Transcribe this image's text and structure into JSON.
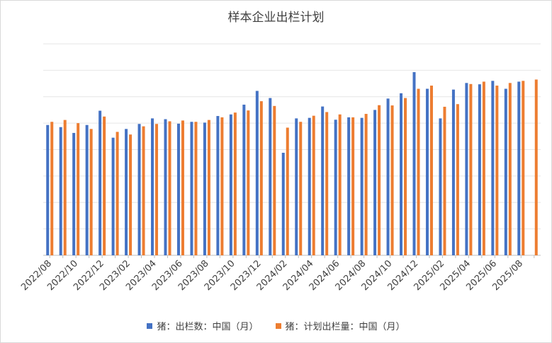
{
  "chart_data": {
    "type": "bar",
    "title": "样本企业出栏计划",
    "xlabel": "",
    "ylabel": "",
    "ylim": [
      0,
      8
    ],
    "y_ticks_shown": false,
    "grid": true,
    "legend_position": "bottom",
    "categories": [
      "2022/08",
      "2022/09",
      "2022/10",
      "2022/11",
      "2022/12",
      "2023/01",
      "2023/02",
      "2023/03",
      "2023/04",
      "2023/05",
      "2023/06",
      "2023/07",
      "2023/08",
      "2023/09",
      "2023/10",
      "2023/11",
      "2023/12",
      "2024/01",
      "2024/02",
      "2024/03",
      "2024/04",
      "2024/05",
      "2024/06",
      "2024/07",
      "2024/08",
      "2024/09",
      "2024/10",
      "2024/11",
      "2024/12",
      "2025/01",
      "2025/02",
      "2025/03",
      "2025/04",
      "2025/05",
      "2025/06",
      "2025/07",
      "2025/08",
      "2025/09"
    ],
    "tick_labels": [
      "2022/08",
      "2022/10",
      "2022/12",
      "2023/02",
      "2023/04",
      "2023/06",
      "2023/08",
      "2023/10",
      "2023/12",
      "2024/02",
      "2024/04",
      "2024/06",
      "2024/08",
      "2024/10",
      "2024/12",
      "2025/02",
      "2025/04",
      "2025/06",
      "2025/08"
    ],
    "series": [
      {
        "name": "猪：出栏数：中国（月）",
        "color": "#4472c4",
        "values": [
          4.93,
          4.85,
          4.63,
          4.93,
          5.47,
          4.45,
          4.78,
          4.97,
          5.18,
          5.15,
          4.98,
          5.05,
          5.02,
          5.27,
          5.33,
          5.7,
          6.22,
          5.95,
          3.88,
          5.18,
          5.2,
          5.63,
          5.13,
          5.22,
          5.2,
          5.5,
          5.93,
          6.13,
          6.93,
          6.3,
          5.18,
          6.27,
          6.52,
          6.47,
          6.6,
          6.3,
          6.57,
          null
        ]
      },
      {
        "name": "猪：计划出栏量：中国（月）",
        "color": "#ed7d31",
        "values": [
          5.05,
          5.12,
          5.0,
          4.78,
          5.25,
          4.67,
          4.57,
          4.88,
          4.97,
          5.07,
          5.1,
          5.05,
          5.12,
          5.22,
          5.4,
          5.48,
          5.83,
          5.65,
          4.83,
          5.05,
          5.28,
          5.42,
          5.33,
          5.22,
          5.35,
          5.68,
          5.67,
          5.95,
          6.3,
          6.42,
          5.62,
          5.72,
          6.48,
          6.57,
          6.42,
          6.52,
          6.6,
          6.65
        ]
      }
    ]
  }
}
